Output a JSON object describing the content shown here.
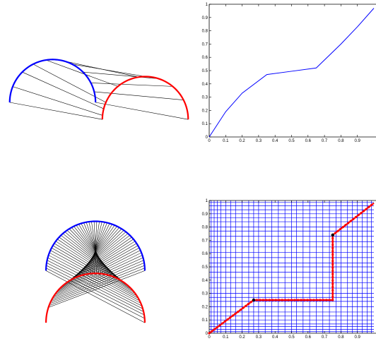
{
  "chart_data": [
    {
      "type": "diagram",
      "panel": "top-left",
      "curves": [
        {
          "name": "",
          "color": "#0000ff",
          "center": [
            -0.95,
            0.0
          ],
          "radius": 0.88,
          "angle_deg": [
            0,
            180
          ]
        },
        {
          "name": "",
          "color": "#ff0000",
          "center": [
            0.95,
            -0.35
          ],
          "radius": 0.88,
          "angle_deg": [
            0,
            180
          ]
        }
      ],
      "correspondence_pairs": [
        [
          0.0,
          0.0
        ],
        [
          0.12,
          0.03
        ],
        [
          0.25,
          0.08
        ],
        [
          0.35,
          0.13
        ],
        [
          0.45,
          0.28
        ],
        [
          0.55,
          0.45
        ],
        [
          0.65,
          0.5
        ],
        [
          0.75,
          0.6
        ],
        [
          0.85,
          0.72
        ],
        [
          0.92,
          0.85
        ],
        [
          1.0,
          1.0
        ]
      ]
    },
    {
      "type": "line",
      "panel": "top-right",
      "title": "",
      "xlabel": "",
      "ylabel": "",
      "x": [
        0,
        0.1,
        0.2,
        0.35,
        0.5,
        0.65,
        0.8,
        0.9,
        1.0
      ],
      "y": [
        0,
        0.19,
        0.33,
        0.47,
        0.495,
        0.52,
        0.7,
        0.83,
        0.97
      ],
      "color": "#0000ff",
      "xlim": [
        0,
        1
      ],
      "ylim": [
        0,
        1
      ],
      "xticks": [
        "0",
        "0.1",
        "0.2",
        "0.3",
        "0.4",
        "0.5",
        "0.6",
        "0.7",
        "0.8",
        "0.9"
      ],
      "yticks": [
        "0",
        "0.1",
        "0.2",
        "0.3",
        "0.4",
        "0.5",
        "0.6",
        "0.7",
        "0.8",
        "0.9",
        "1"
      ],
      "grid": false
    },
    {
      "type": "diagram",
      "panel": "bottom-left",
      "curves": [
        {
          "name": "",
          "color": "#0000ff",
          "center": [
            0.0,
            0.35
          ],
          "radius": 0.92,
          "angle_deg": [
            0,
            180
          ]
        },
        {
          "name": "",
          "color": "#ff0000",
          "center": [
            0.0,
            -0.62
          ],
          "radius": 0.92,
          "angle_deg": [
            0,
            180
          ]
        }
      ],
      "line_count": 60
    },
    {
      "type": "line",
      "panel": "bottom-right",
      "title": "",
      "xlabel": "",
      "ylabel": "",
      "path_x": [
        0,
        0.27,
        0.27,
        0.75,
        0.75,
        1.0
      ],
      "path_y": [
        0,
        0.25,
        0.25,
        0.25,
        0.74,
        0.98
      ],
      "corner_points": [
        [
          0.27,
          0.25
        ],
        [
          0.75,
          0.74
        ]
      ],
      "path_color": "#ff0000",
      "grid_color": "#0000ff",
      "grid_lines": [
        0.012,
        0.03,
        0.05,
        0.07,
        0.1,
        0.13,
        0.16,
        0.2,
        0.24,
        0.27,
        0.3,
        0.34,
        0.38,
        0.42,
        0.46,
        0.5,
        0.53,
        0.57,
        0.61,
        0.65,
        0.69,
        0.73,
        0.77,
        0.8,
        0.84,
        0.87,
        0.9,
        0.93,
        0.96,
        0.985
      ],
      "xlim": [
        0,
        1
      ],
      "ylim": [
        0,
        1
      ],
      "xticks": [
        "0",
        "0.1",
        "0.2",
        "0.3",
        "0.4",
        "0.5",
        "0.6",
        "0.7",
        "0.8",
        "0.9"
      ],
      "yticks": [
        "0",
        "0.1",
        "0.2",
        "0.3",
        "0.4",
        "0.5",
        "0.6",
        "0.7",
        "0.8",
        "0.9",
        "1"
      ],
      "grid": true
    }
  ]
}
